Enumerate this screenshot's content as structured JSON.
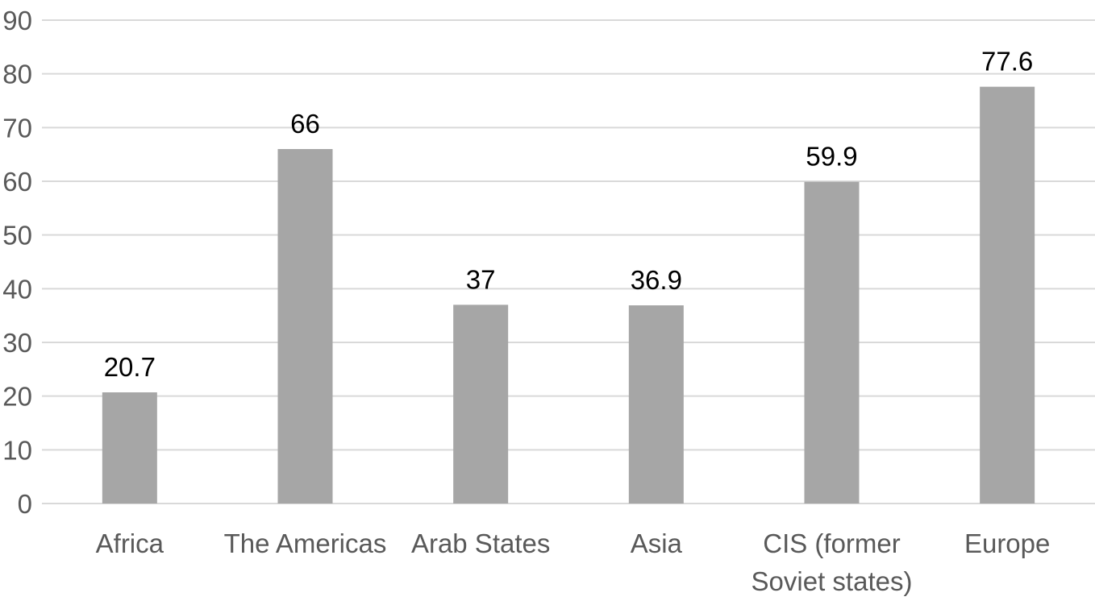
{
  "chart_data": {
    "type": "bar",
    "categories": [
      [
        "Africa"
      ],
      [
        "The Americas"
      ],
      [
        "Arab States"
      ],
      [
        "Asia"
      ],
      [
        "CIS (former",
        "Soviet states)"
      ],
      [
        "Europe"
      ]
    ],
    "values": [
      20.7,
      66,
      37,
      36.9,
      59.9,
      77.6
    ],
    "data_labels": [
      "20.7",
      "66",
      "37",
      "36.9",
      "59.9",
      "77.6"
    ],
    "ylim": [
      0,
      90
    ],
    "yticks": [
      0,
      10,
      20,
      30,
      40,
      50,
      60,
      70,
      80,
      90
    ],
    "grid": true,
    "colors": {
      "bar": "#a6a6a6",
      "grid": "#d9d9d9",
      "tick_text": "#595959",
      "label_text": "#000000"
    }
  }
}
